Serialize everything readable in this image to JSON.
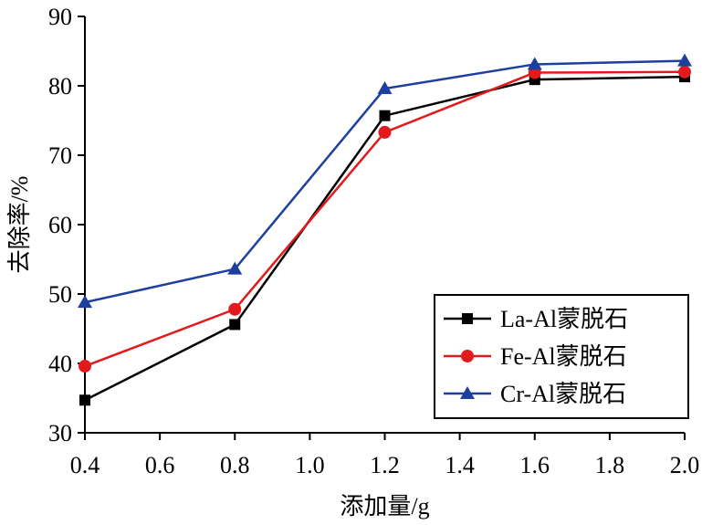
{
  "chart_data": {
    "type": "line",
    "title": "",
    "xlabel": "添加量/g",
    "ylabel": "去除率/%",
    "x": [
      0.4,
      0.8,
      1.2,
      1.6,
      2.0
    ],
    "xlim": [
      0.4,
      2.0
    ],
    "ylim": [
      30,
      90
    ],
    "x_ticks": [
      "0.4",
      "0.6",
      "0.8",
      "1.0",
      "1.2",
      "1.4",
      "1.6",
      "1.8",
      "2.0"
    ],
    "y_ticks": [
      "30",
      "40",
      "50",
      "60",
      "70",
      "80",
      "90"
    ],
    "grid": false,
    "legend_position": "bottom-right",
    "series": [
      {
        "name": "La-Al蒙脱石",
        "color": "#000000",
        "marker": "square",
        "values": [
          34.7,
          45.6,
          75.7,
          80.9,
          81.3
        ]
      },
      {
        "name": "Fe-Al蒙脱石",
        "color": "#e31a1c",
        "marker": "circle",
        "values": [
          39.6,
          47.8,
          73.3,
          81.9,
          82.0
        ]
      },
      {
        "name": "Cr-Al蒙脱石",
        "color": "#1f3f9f",
        "marker": "triangle",
        "values": [
          48.8,
          53.6,
          79.6,
          83.1,
          83.6
        ]
      }
    ]
  }
}
